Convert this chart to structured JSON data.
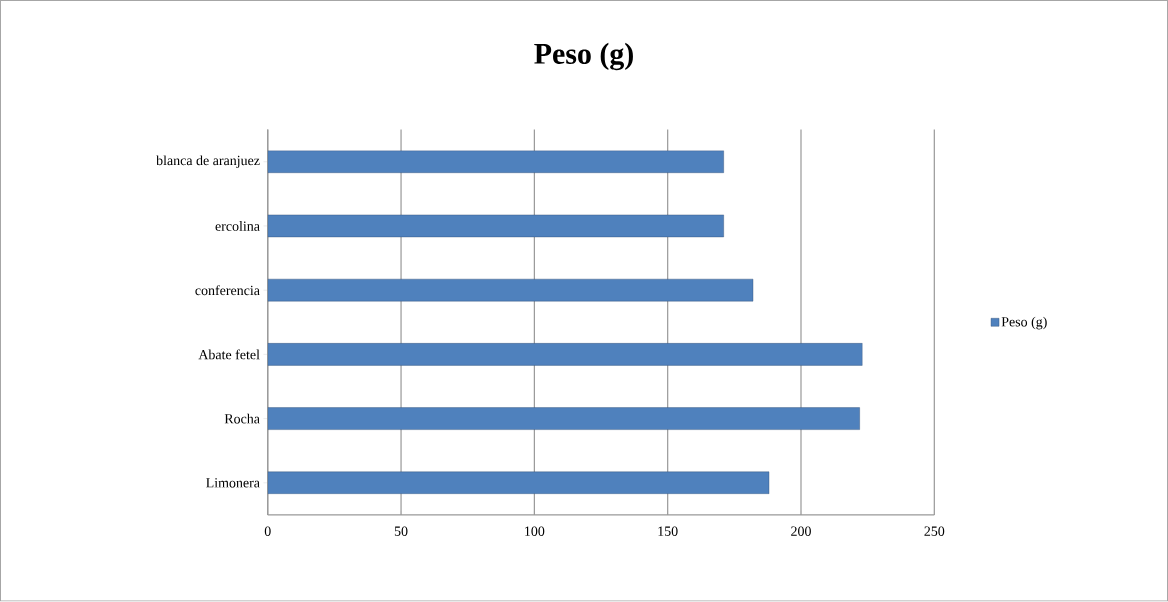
{
  "chart_data": {
    "type": "bar",
    "orientation": "horizontal",
    "title": "Peso (g)",
    "categories": [
      "blanca de aranjuez",
      "ercolina",
      "conferencia",
      "Abate fetel",
      "Rocha",
      "Limonera"
    ],
    "series": [
      {
        "name": "Peso (g)",
        "color": "#4f81bd",
        "values": [
          171,
          171,
          182,
          223,
          222,
          188
        ]
      }
    ],
    "xlim": [
      0,
      250
    ],
    "xticks": [
      0,
      50,
      100,
      150,
      200,
      250
    ],
    "grid": "x",
    "legend": "right"
  }
}
